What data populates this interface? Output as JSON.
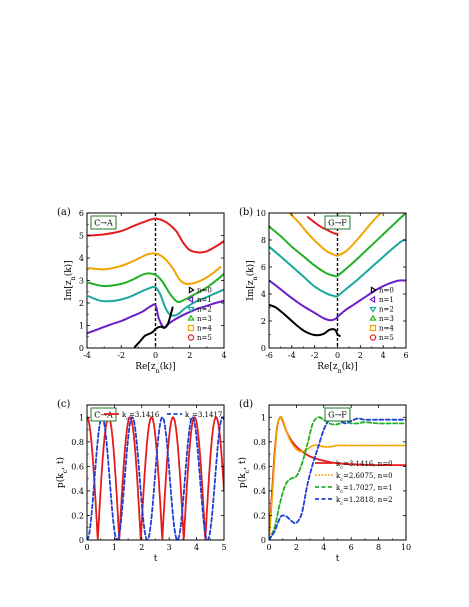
{
  "colors": {
    "n0": "#000000",
    "n1": "#6a1fc9",
    "n2": "#1aa89a",
    "n3": "#22b024",
    "n4": "#f2a400",
    "n5": "#e61b1b",
    "blue": "#1f3fd6",
    "tag_border": "#1e7b2b"
  },
  "chart_data": [
    {
      "id": "a",
      "type": "line",
      "panel_label": "(a)",
      "tag": "C→A",
      "xlabel": "Re[z_n(k)]",
      "ylabel": "Im[z_n(k)]",
      "xlim": [
        -4,
        4
      ],
      "ylim": [
        0,
        6
      ],
      "xticks": [
        "-4",
        "-2",
        "0",
        "2",
        "4"
      ],
      "yticks": [
        "0",
        "1",
        "2",
        "3",
        "4",
        "5",
        "6"
      ],
      "dashed_vline_x": 0,
      "legend_position": "lower-right",
      "legend": [
        "n=0",
        "n=1",
        "n=2",
        "n=3",
        "n=4",
        "n=5"
      ],
      "series": [
        {
          "name": "n=5",
          "x": [
            -3.9,
            -3.0,
            -2.0,
            -1.2,
            -0.5,
            0.0,
            0.6,
            1.2,
            1.6,
            2.0,
            2.5,
            3.0,
            3.6,
            4.0
          ],
          "y": [
            5.0,
            5.05,
            5.2,
            5.45,
            5.65,
            5.75,
            5.6,
            5.2,
            4.7,
            4.35,
            4.25,
            4.3,
            4.55,
            4.75
          ]
        },
        {
          "name": "n=4",
          "x": [
            -3.9,
            -3.0,
            -2.0,
            -1.2,
            -0.5,
            0.0,
            0.5,
            1.0,
            1.4,
            1.8,
            2.3,
            2.8,
            3.3,
            3.8
          ],
          "y": [
            3.55,
            3.5,
            3.65,
            3.9,
            4.15,
            4.2,
            4.0,
            3.55,
            3.05,
            2.85,
            2.9,
            3.05,
            3.3,
            3.6
          ]
        },
        {
          "name": "n=3",
          "x": [
            -3.9,
            -3.0,
            -2.0,
            -1.3,
            -0.6,
            0.0,
            0.4,
            0.9,
            1.3,
            1.7,
            2.2,
            2.7,
            3.2,
            3.7,
            4.0
          ],
          "y": [
            2.9,
            2.75,
            2.85,
            3.05,
            3.3,
            3.25,
            2.95,
            2.35,
            2.05,
            2.15,
            2.35,
            2.55,
            2.8,
            3.1,
            3.3
          ]
        },
        {
          "name": "n=2",
          "x": [
            -3.9,
            -3.2,
            -2.4,
            -1.6,
            -1.0,
            -0.4,
            0.0,
            0.3,
            0.6,
            0.9,
            1.3,
            1.7,
            2.2,
            2.8,
            3.4,
            4.0
          ],
          "y": [
            2.3,
            2.1,
            2.1,
            2.25,
            2.45,
            2.65,
            2.7,
            2.35,
            1.75,
            1.45,
            1.5,
            1.75,
            2.0,
            2.2,
            2.4,
            2.6
          ]
        },
        {
          "name": "n=1",
          "x": [
            -4.0,
            -3.3,
            -2.6,
            -2.0,
            -1.4,
            -0.8,
            -0.3,
            0.0,
            0.2,
            0.5,
            0.8,
            1.2,
            1.7,
            2.3,
            2.9,
            3.5,
            4.0
          ],
          "y": [
            0.65,
            0.85,
            1.05,
            1.2,
            1.4,
            1.6,
            1.85,
            1.9,
            1.3,
            0.9,
            1.1,
            1.3,
            1.5,
            1.7,
            1.85,
            2.0,
            2.1
          ]
        },
        {
          "name": "n=0",
          "x": [
            -1.2,
            -0.9,
            -0.6,
            -0.3,
            -0.1,
            0.0,
            0.3,
            0.5,
            0.7,
            0.8,
            1.0
          ],
          "y": [
            0.05,
            0.3,
            0.55,
            0.65,
            0.75,
            0.85,
            0.95,
            0.9,
            1.05,
            1.25,
            1.8
          ]
        }
      ]
    },
    {
      "id": "b",
      "type": "line",
      "panel_label": "(b)",
      "tag": "G→F",
      "xlabel": "Re[z_n(k)]",
      "ylabel": "Im[z_n(k)]",
      "xlim": [
        -6,
        6
      ],
      "ylim": [
        0,
        10
      ],
      "xticks": [
        "-6",
        "-4",
        "-2",
        "0",
        "2",
        "4",
        "6"
      ],
      "yticks": [
        "0",
        "2",
        "4",
        "6",
        "8",
        "10"
      ],
      "dashed_vline_x": 0,
      "legend_position": "lower-right",
      "legend": [
        "n=0",
        "n=1",
        "n=2",
        "n=3",
        "n=4",
        "n=5"
      ],
      "series": [
        {
          "name": "n=5",
          "x": [
            -2.6,
            -2.0,
            -1.4,
            -0.8,
            -0.3,
            0.0
          ],
          "y": [
            9.7,
            9.3,
            8.95,
            8.7,
            8.5,
            8.45
          ]
        },
        {
          "name": "n=4",
          "x": [
            -4.2,
            -3.4,
            -2.6,
            -1.8,
            -1.0,
            -0.4,
            0.0,
            0.8,
            1.6,
            2.4,
            3.2,
            3.8
          ],
          "y": [
            10.0,
            9.3,
            8.5,
            7.8,
            7.2,
            6.95,
            6.85,
            7.2,
            7.9,
            8.7,
            9.5,
            10.0
          ]
        },
        {
          "name": "n=3",
          "x": [
            -6.0,
            -5.0,
            -4.0,
            -3.0,
            -2.0,
            -1.0,
            -0.3,
            0.0,
            0.8,
            1.6,
            2.6,
            3.6,
            4.6,
            5.6,
            6.0
          ],
          "y": [
            9.0,
            8.3,
            7.5,
            6.8,
            6.1,
            5.55,
            5.35,
            5.35,
            5.9,
            6.5,
            7.3,
            8.1,
            8.9,
            9.7,
            10.0
          ]
        },
        {
          "name": "n=2",
          "x": [
            -6.0,
            -5.0,
            -4.0,
            -3.0,
            -2.0,
            -1.0,
            -0.3,
            0.0,
            0.8,
            1.6,
            2.6,
            3.6,
            4.6,
            5.6,
            6.0
          ],
          "y": [
            7.5,
            6.8,
            6.05,
            5.3,
            4.55,
            4.05,
            3.85,
            3.85,
            4.4,
            4.95,
            5.7,
            6.45,
            7.2,
            7.9,
            8.0
          ]
        },
        {
          "name": "n=1",
          "x": [
            -6.0,
            -5.2,
            -4.4,
            -3.6,
            -2.8,
            -2.0,
            -1.2,
            -0.6,
            -0.2,
            0.0,
            0.6,
            1.4,
            2.2,
            3.0,
            3.8,
            4.6,
            5.4,
            6.0
          ],
          "y": [
            5.0,
            4.5,
            3.95,
            3.45,
            3.0,
            2.6,
            2.2,
            2.05,
            2.15,
            2.3,
            2.75,
            3.2,
            3.65,
            4.1,
            4.5,
            4.8,
            5.0,
            5.0
          ]
        },
        {
          "name": "n=0",
          "x": [
            -6.0,
            -5.4,
            -4.8,
            -4.2,
            -3.6,
            -3.0,
            -2.4,
            -1.8,
            -1.2,
            -0.7,
            -0.2,
            0.0,
            0.2
          ],
          "y": [
            3.2,
            3.0,
            2.6,
            2.15,
            1.7,
            1.3,
            1.05,
            0.95,
            1.05,
            1.35,
            1.35,
            1.0,
            0.9
          ]
        }
      ]
    },
    {
      "id": "c",
      "type": "line",
      "panel_label": "(c)",
      "tag": "C→A",
      "xlabel": "t",
      "ylabel": "p(k_c, t)",
      "xlim": [
        0,
        5
      ],
      "ylim": [
        0,
        1.1
      ],
      "xticks": [
        "0",
        "1",
        "2",
        "3",
        "4",
        "5"
      ],
      "yticks": [
        "0",
        "0.2",
        "0.4",
        "0.6",
        "0.8",
        "1"
      ],
      "legend_position": "top",
      "legend": [
        "k_c=3.1416",
        "k_c=3.1417"
      ],
      "series": [
        {
          "name": "k_c=3.1416",
          "style": "solid",
          "kind": "abs_cos",
          "period": 0.785
        },
        {
          "name": "k_c=3.1417",
          "style": "dashed",
          "kind": "sin_sq",
          "period": 1.1
        }
      ]
    },
    {
      "id": "d",
      "type": "line",
      "panel_label": "(d)",
      "tag": "G→F",
      "xlabel": "t",
      "ylabel": "p(k_c, t)",
      "xlim": [
        0,
        10
      ],
      "ylim": [
        0,
        1.1
      ],
      "xticks": [
        "0",
        "2",
        "4",
        "6",
        "8",
        "10"
      ],
      "yticks": [
        "0",
        "0.2",
        "0.4",
        "0.6",
        "0.8",
        "1"
      ],
      "legend_position": "right",
      "legend": [
        "k_c=3.1416, n=0",
        "k_c=2.6075, n=0",
        "k_c=1.7027, n=1",
        "k_c=1.2818, n=2"
      ],
      "series": [
        {
          "name": "k_c=3.1416, n=0",
          "style": "solid",
          "x": [
            0,
            0.2,
            0.4,
            0.6,
            0.8,
            1.0,
            1.3,
            1.7,
            2.2,
            3.0,
            4.0,
            5.0,
            6.5,
            8.0,
            10.0
          ],
          "y": [
            0.0,
            0.35,
            0.7,
            0.92,
            1.0,
            0.97,
            0.88,
            0.8,
            0.74,
            0.68,
            0.645,
            0.625,
            0.615,
            0.61,
            0.61
          ]
        },
        {
          "name": "k_c=2.6075, n=0",
          "style": "dotted",
          "x": [
            0,
            0.2,
            0.4,
            0.6,
            0.8,
            1.0,
            1.3,
            1.6,
            2.0,
            2.4,
            2.8,
            3.2,
            3.6,
            4.0,
            4.5,
            5.0,
            6.0,
            7.0,
            8.0,
            10.0
          ],
          "y": [
            0.0,
            0.3,
            0.65,
            0.92,
            1.0,
            0.98,
            0.88,
            0.8,
            0.74,
            0.72,
            0.74,
            0.77,
            0.77,
            0.76,
            0.76,
            0.77,
            0.77,
            0.77,
            0.77,
            0.77
          ]
        },
        {
          "name": "k_c=1.7027, n=1",
          "style": "dashed",
          "x": [
            0,
            0.4,
            0.8,
            1.2,
            1.6,
            2.0,
            2.4,
            2.8,
            3.2,
            3.6,
            4.0,
            4.4,
            4.8,
            5.2,
            5.6,
            6.0,
            6.5,
            7.0,
            8.0,
            9.0,
            10.0
          ],
          "y": [
            0.0,
            0.1,
            0.3,
            0.45,
            0.5,
            0.52,
            0.62,
            0.78,
            0.95,
            1.0,
            0.98,
            0.95,
            0.94,
            0.95,
            0.97,
            0.95,
            0.95,
            0.96,
            0.95,
            0.95,
            0.95
          ]
        },
        {
          "name": "k_c=1.2818, n=2",
          "style": "dashed-blue",
          "x": [
            0,
            0.4,
            0.8,
            1.0,
            1.3,
            1.7,
            2.0,
            2.4,
            2.8,
            3.2,
            3.6,
            4.0,
            4.4,
            4.8,
            5.2,
            5.6,
            6.0,
            6.5,
            7.0,
            8.0,
            9.0,
            10.0
          ],
          "y": [
            0.0,
            0.07,
            0.18,
            0.2,
            0.19,
            0.15,
            0.14,
            0.22,
            0.45,
            0.62,
            0.76,
            0.9,
            0.98,
            1.0,
            0.97,
            0.95,
            0.97,
            0.99,
            0.98,
            0.98,
            0.98,
            0.98
          ]
        }
      ]
    }
  ]
}
